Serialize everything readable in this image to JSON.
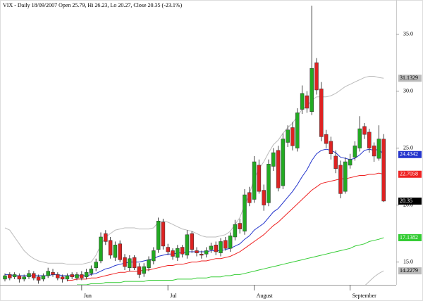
{
  "chart_data": {
    "type": "candlestick",
    "title": "VIX - Daily 18/09/2007 Open 25.79, Hi 26.23, Lo 20.27, Close 20.35 (-23.1%)",
    "categories": [
      null,
      null,
      null,
      null,
      null,
      null,
      null,
      null,
      null,
      null,
      null,
      null,
      null,
      null,
      null,
      null,
      "Jun",
      null,
      null,
      null,
      null,
      null,
      null,
      null,
      null,
      null,
      null,
      null,
      null,
      null,
      null,
      null,
      null,
      null,
      "Jul",
      null,
      null,
      null,
      null,
      null,
      null,
      null,
      null,
      null,
      null,
      null,
      null,
      null,
      null,
      null,
      null,
      null,
      "August",
      null,
      null,
      null,
      null,
      null,
      null,
      null,
      null,
      null,
      null,
      null,
      null,
      null,
      null,
      null,
      null,
      null,
      null,
      null,
      "September",
      null,
      null,
      null,
      null,
      null,
      null,
      null
    ],
    "open": [
      13.5,
      13.9,
      13.7,
      13.8,
      13.5,
      13.7,
      14.0,
      13.7,
      13.5,
      13.8,
      14.1,
      13.9,
      13.7,
      13.5,
      13.9,
      13.6,
      13.9,
      13.7,
      14.0,
      14.5,
      15.1,
      17.5,
      16.9,
      15.4,
      16.6,
      15.4,
      14.5,
      15.4,
      14.6,
      14.0,
      14.5,
      15.1,
      16.1,
      18.5,
      16.3,
      16.0,
      15.4,
      16.3,
      15.6,
      17.5,
      16.0,
      15.7,
      15.7,
      16.1,
      16.5,
      15.8,
      16.9,
      16.2,
      17.2,
      18.4,
      17.7,
      21.1,
      20.5,
      23.5,
      21.3,
      20.2,
      23.4,
      24.8,
      21.7,
      25.5,
      26.8,
      25.0,
      28.4,
      29.6,
      28.2,
      32.5,
      30.2,
      26.2,
      25.6,
      24.3,
      23.5,
      21.2,
      23.5,
      24.2,
      25.0,
      26.9,
      26.4,
      25.2,
      24.1,
      25.79
    ],
    "high": [
      14.0,
      14.1,
      14.1,
      14.0,
      13.9,
      14.3,
      14.2,
      13.9,
      14.0,
      14.5,
      14.4,
      14.1,
      13.9,
      14.0,
      14.1,
      14.1,
      14.2,
      14.4,
      14.7,
      15.3,
      17.6,
      17.8,
      17.2,
      16.8,
      16.9,
      15.7,
      15.6,
      15.6,
      14.9,
      14.9,
      15.5,
      16.3,
      18.9,
      18.8,
      16.6,
      16.2,
      16.5,
      16.5,
      17.8,
      17.7,
      16.3,
      16.0,
      16.3,
      16.7,
      16.8,
      17.1,
      17.2,
      17.6,
      18.7,
      18.8,
      21.4,
      21.6,
      24.3,
      24.0,
      21.8,
      24.0,
      25.0,
      25.2,
      26.3,
      27.0,
      27.3,
      28.5,
      30.5,
      30.0,
      37.5,
      32.9,
      30.8,
      26.6,
      26.0,
      24.8,
      23.9,
      24.2,
      24.5,
      25.6,
      27.8,
      27.2,
      26.7,
      25.5,
      27.0,
      26.23
    ],
    "low": [
      13.3,
      13.4,
      13.5,
      13.2,
      13.3,
      13.5,
      13.4,
      13.1,
      13.3,
      13.6,
      13.7,
      13.4,
      13.2,
      13.3,
      13.5,
      13.4,
      13.4,
      13.5,
      13.8,
      14.2,
      14.9,
      16.5,
      15.3,
      15.1,
      15.0,
      14.3,
      14.2,
      14.3,
      13.6,
      13.7,
      14.2,
      14.8,
      15.8,
      16.1,
      15.6,
      15.2,
      15.1,
      15.4,
      15.3,
      15.8,
      15.5,
      15.3,
      15.4,
      15.8,
      15.6,
      15.5,
      16.0,
      15.9,
      16.9,
      17.5,
      17.4,
      19.9,
      20.2,
      21.0,
      19.5,
      19.9,
      23.0,
      21.2,
      21.4,
      25.1,
      24.8,
      24.7,
      28.0,
      28.1,
      27.9,
      29.7,
      25.6,
      25.0,
      24.0,
      22.8,
      20.6,
      21.0,
      23.2,
      23.9,
      24.7,
      25.8,
      24.6,
      23.8,
      23.9,
      20.27
    ],
    "close": [
      13.8,
      13.6,
      13.9,
      13.5,
      13.7,
      14.0,
      13.6,
      13.4,
      13.8,
      14.2,
      13.9,
      13.6,
      13.5,
      13.8,
      13.7,
      13.9,
      13.6,
      14.1,
      14.4,
      15.0,
      17.2,
      16.8,
      15.6,
      16.5,
      15.2,
      14.6,
      15.3,
      14.5,
      13.9,
      14.6,
      15.2,
      16.0,
      18.6,
      16.4,
      15.9,
      15.5,
      16.2,
      15.7,
      17.4,
      16.1,
      15.8,
      15.6,
      16.0,
      16.4,
      15.9,
      16.8,
      16.2,
      17.3,
      18.3,
      17.9,
      20.9,
      20.2,
      23.8,
      21.2,
      20.0,
      23.6,
      24.6,
      21.5,
      25.8,
      26.6,
      25.2,
      28.1,
      29.8,
      28.5,
      32.0,
      30.1,
      26.0,
      25.4,
      24.5,
      23.2,
      21.0,
      23.8,
      24.0,
      25.2,
      26.7,
      26.2,
      25.0,
      24.3,
      25.8,
      20.35
    ],
    "up_color": "#22aa22",
    "down_color": "#dd2222",
    "close_label_color": "#000000",
    "series": [
      {
        "color": "#bbbbbb",
        "values": [
          18.0,
          17.8,
          17.2,
          16.6,
          16.0,
          15.6,
          15.3,
          15.1,
          15.0,
          14.9,
          14.9,
          14.9,
          14.9,
          14.8,
          14.8,
          14.8,
          14.8,
          14.9,
          15.0,
          15.6,
          16.5,
          17.2,
          17.5,
          17.8,
          17.9,
          18.0,
          18.0,
          18.0,
          17.9,
          17.9,
          17.9,
          18.0,
          18.5,
          18.6,
          18.5,
          18.3,
          18.1,
          17.9,
          17.8,
          17.7,
          17.5,
          17.3,
          17.2,
          17.2,
          17.2,
          17.3,
          17.4,
          17.7,
          18.3,
          18.9,
          20.0,
          21.0,
          22.3,
          23.2,
          23.8,
          24.6,
          25.3,
          25.7,
          26.3,
          26.8,
          27.2,
          27.8,
          28.4,
          28.7,
          29.2,
          29.5,
          29.5,
          29.5,
          29.6,
          29.8,
          30.1,
          30.4,
          30.6,
          30.8,
          31.0,
          31.2,
          31.3,
          31.3,
          31.2,
          31.1329
        ]
      },
      {
        "color": "#2233cc",
        "values": [
          13.9,
          13.9,
          13.8,
          13.8,
          13.8,
          13.8,
          13.8,
          13.8,
          13.8,
          13.8,
          13.9,
          13.9,
          13.8,
          13.8,
          13.8,
          13.8,
          13.8,
          13.8,
          13.9,
          14.0,
          14.2,
          14.4,
          14.5,
          14.7,
          14.8,
          14.9,
          15.0,
          15.0,
          15.0,
          15.1,
          15.2,
          15.3,
          15.5,
          15.6,
          15.7,
          15.7,
          15.8,
          15.8,
          15.9,
          15.9,
          15.9,
          15.9,
          15.9,
          16.0,
          16.0,
          16.0,
          16.1,
          16.2,
          16.4,
          16.6,
          17.0,
          17.3,
          17.8,
          18.1,
          18.4,
          18.9,
          19.4,
          19.7,
          20.2,
          20.7,
          21.2,
          21.8,
          22.5,
          23.1,
          23.9,
          24.5,
          24.8,
          24.9,
          24.8,
          24.6,
          24.2,
          24.1,
          24.0,
          24.1,
          24.4,
          24.8,
          24.9,
          24.8,
          24.9,
          24.4342
        ]
      },
      {
        "color": "#ee2222",
        "values": [
          null,
          null,
          null,
          null,
          null,
          null,
          null,
          null,
          null,
          null,
          null,
          null,
          null,
          13.4,
          13.4,
          13.5,
          13.5,
          13.5,
          13.6,
          13.6,
          13.7,
          13.8,
          13.9,
          14.0,
          14.1,
          14.1,
          14.2,
          14.2,
          14.2,
          14.3,
          14.3,
          14.4,
          14.5,
          14.6,
          14.7,
          14.7,
          14.8,
          14.8,
          14.9,
          15.0,
          15.0,
          15.1,
          15.1,
          15.2,
          15.3,
          15.3,
          15.4,
          15.5,
          15.7,
          15.9,
          16.2,
          16.5,
          16.8,
          17.1,
          17.4,
          17.8,
          18.2,
          18.5,
          18.9,
          19.3,
          19.7,
          20.1,
          20.5,
          20.9,
          21.3,
          21.6,
          21.9,
          22.0,
          22.1,
          22.2,
          22.3,
          22.3,
          22.4,
          22.5,
          22.6,
          22.6,
          22.7,
          22.7,
          22.8,
          22.7058
        ]
      },
      {
        "color": "#33cc33",
        "values": [
          null,
          null,
          null,
          null,
          null,
          null,
          null,
          null,
          null,
          null,
          null,
          null,
          null,
          null,
          null,
          13.0,
          13.0,
          13.0,
          13.1,
          13.1,
          13.1,
          13.2,
          13.2,
          13.2,
          13.2,
          13.3,
          13.3,
          13.3,
          13.3,
          13.3,
          13.4,
          13.4,
          13.4,
          13.4,
          13.4,
          13.4,
          13.5,
          13.5,
          13.5,
          13.5,
          13.6,
          13.6,
          13.6,
          13.7,
          13.7,
          13.7,
          13.8,
          13.8,
          13.9,
          13.9,
          14.0,
          14.1,
          14.2,
          14.3,
          14.4,
          14.5,
          14.6,
          14.7,
          14.8,
          14.9,
          15.0,
          15.1,
          15.2,
          15.3,
          15.4,
          15.5,
          15.6,
          15.7,
          15.8,
          15.9,
          16.0,
          16.1,
          16.2,
          16.4,
          16.5,
          16.6,
          16.8,
          16.9,
          17.0,
          17.1382
        ]
      },
      {
        "color": "#bbbbbb",
        "values": [
          null,
          null,
          null,
          null,
          null,
          null,
          null,
          null,
          null,
          null,
          null,
          null,
          null,
          null,
          null,
          null,
          null,
          null,
          null,
          null,
          null,
          null,
          null,
          null,
          null,
          null,
          null,
          null,
          null,
          null,
          null,
          null,
          null,
          null,
          null,
          null,
          null,
          null,
          null,
          null,
          null,
          null,
          null,
          null,
          null,
          null,
          null,
          null,
          null,
          null,
          null,
          null,
          null,
          null,
          null,
          null,
          null,
          null,
          null,
          null,
          null,
          null,
          null,
          null,
          null,
          null,
          null,
          null,
          null,
          null,
          null,
          null,
          null,
          null,
          12.6,
          12.9,
          13.3,
          13.7,
          14.0,
          14.2279
        ]
      }
    ],
    "ylim": [
      13,
      38
    ],
    "yticks": [
      {
        "value": 15,
        "label": "15.0"
      },
      {
        "value": 20,
        "label": "20.0"
      },
      {
        "value": 25,
        "label": "25.0"
      },
      {
        "value": 30,
        "label": "30.0"
      },
      {
        "value": 35,
        "label": "35.0"
      }
    ]
  }
}
